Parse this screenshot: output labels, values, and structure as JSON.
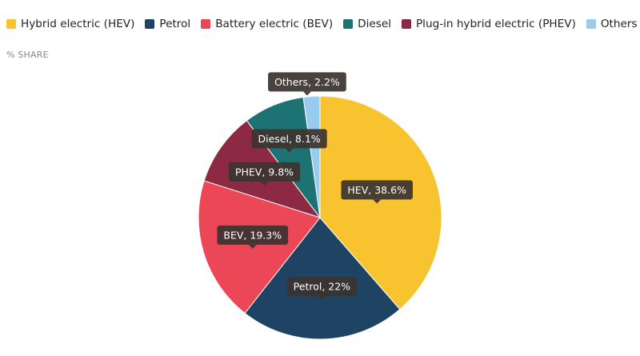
{
  "chart_data": {
    "type": "pie",
    "ylabel": "% SHARE",
    "slices": [
      {
        "name": "Hybrid electric (HEV)",
        "label": "HEV, 38.6%",
        "value": 38.6,
        "color": "#F7C32E"
      },
      {
        "name": "Petrol",
        "label": "Petrol, 22%",
        "value": 22,
        "color": "#1E4363"
      },
      {
        "name": "Battery electric (BEV)",
        "label": "BEV, 19.3%",
        "value": 19.3,
        "color": "#EB4757"
      },
      {
        "name": "Plug-in hybrid electric (PHEV)",
        "label": "PHEV, 9.8%",
        "value": 9.8,
        "color": "#8E2943"
      },
      {
        "name": "Diesel",
        "label": "Diesel, 8.1%",
        "value": 8.1,
        "color": "#1D7373"
      },
      {
        "name": "Others",
        "label": "Others, 2.2%",
        "value": 2.2,
        "color": "#97CCEE"
      }
    ],
    "legend": {
      "placement": "top",
      "order": [
        "Hybrid electric (HEV)",
        "Petrol",
        "Battery electric (BEV)",
        "Diesel",
        "Plug-in hybrid electric (PHEV)",
        "Others"
      ]
    }
  }
}
